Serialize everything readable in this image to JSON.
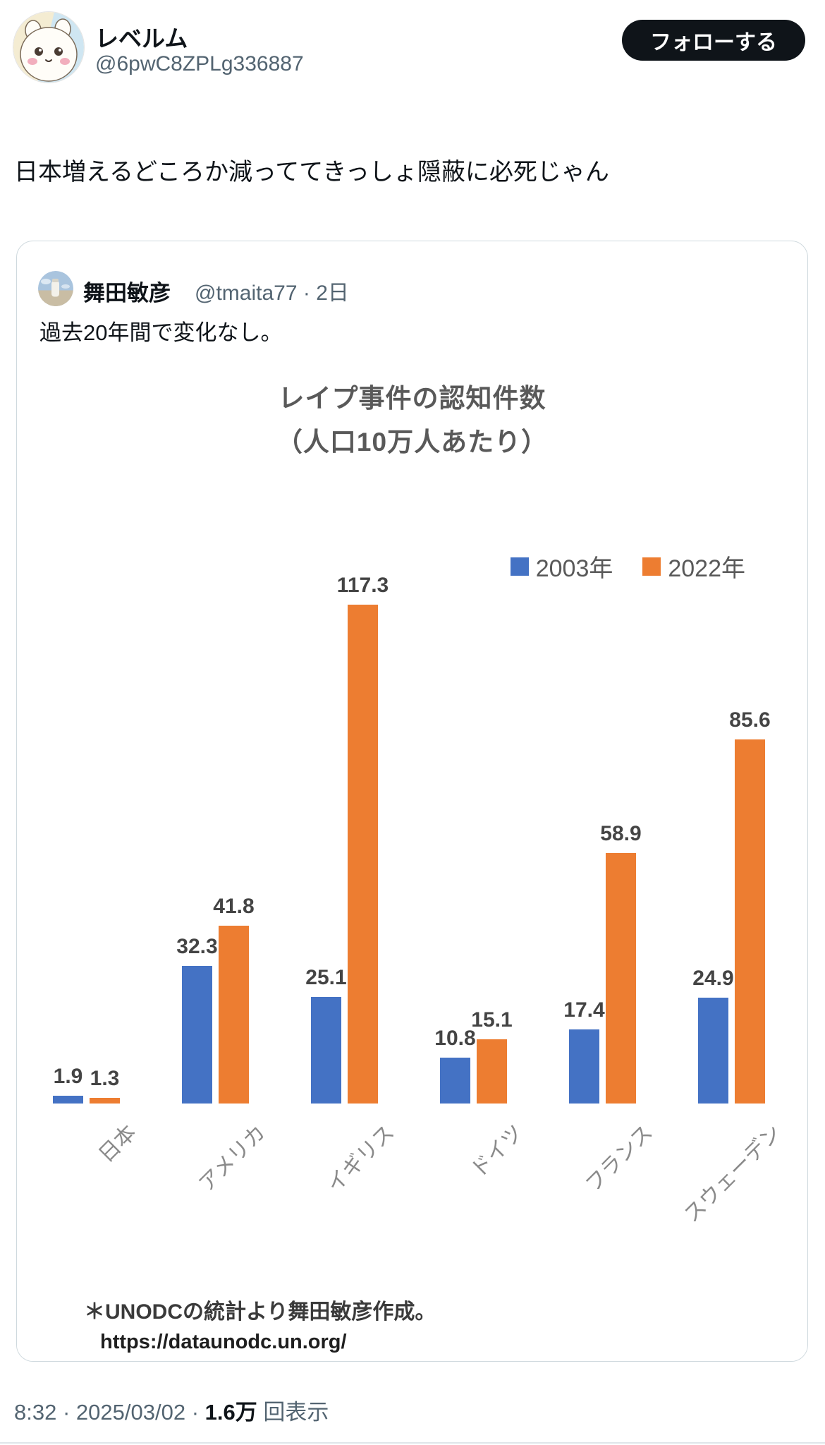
{
  "header": {
    "display_name": "レベルム",
    "handle": "@6pwC8ZPLg336887",
    "follow_button": "フォローする"
  },
  "tweet": {
    "text": "日本増えるどころか減っててきっしょ隠蔽に必死じゃん"
  },
  "quote": {
    "author": "舞田敏彦",
    "handle": "@tmaita77",
    "separator": "·",
    "time": "2日",
    "text": "過去20年間で変化なし。"
  },
  "chart_data": {
    "type": "bar",
    "title_line1": "レイプ事件の認知件数",
    "title_line2": "（人口10万人あたり）",
    "categories": [
      "日本",
      "アメリカ",
      "イギリス",
      "ドイツ",
      "フランス",
      "スウェーデン"
    ],
    "series": [
      {
        "name": "2003年",
        "color": "#4472C4",
        "values": [
          1.9,
          32.3,
          25.1,
          10.8,
          17.4,
          24.9
        ]
      },
      {
        "name": "2022年",
        "color": "#ED7D31",
        "values": [
          1.3,
          41.8,
          117.3,
          15.1,
          58.9,
          85.6
        ]
      }
    ],
    "ylim": [
      0,
      120
    ],
    "grid": false,
    "legend_position": "top-right",
    "value_labels": true,
    "source_note_line1": "＊UNODCの統計より舞田敏彦作成。",
    "source_note_line2": "https://dataunodc.un.org/"
  },
  "footer": {
    "time": "8:32",
    "separator": "·",
    "date": "2025/03/02",
    "views_count": "1.6万",
    "views_label": "回表示"
  },
  "colors": {
    "series_2003": "#4472C4",
    "series_2022": "#ED7D31",
    "follow_button_bg": "#0f1419",
    "muted_text": "#536471",
    "chart_text": "#595959"
  }
}
